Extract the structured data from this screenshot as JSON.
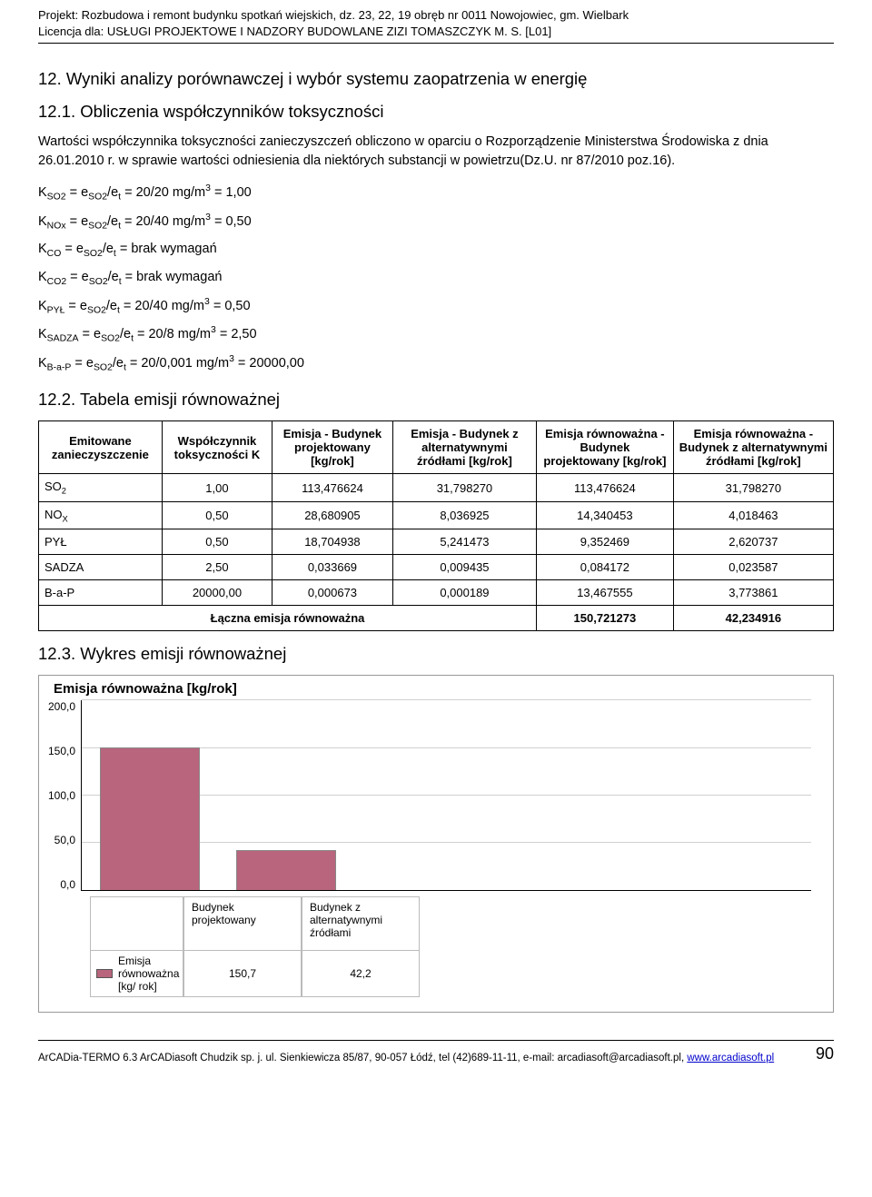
{
  "header": {
    "line1": "Projekt: Rozbudowa i remont budynku spotkań wiejskich, dz. 23, 22, 19 obręb nr 0011 Nowojowiec, gm. Wielbark",
    "line2": "Licencja dla: USŁUGI PROJEKTOWE I NADZORY BUDOWLANE ZIZI TOMASZCZYK M. S. [L01]"
  },
  "sections": {
    "h12": "12. Wyniki analizy porównawczej i wybór systemu zaopatrzenia w energię",
    "h121": "12.1. Obliczenia współczynników toksyczności",
    "para1": "Wartości współczynnika toksyczności zanieczyszczeń obliczono w oparciu o Rozporządzenie Ministerstwa Środowiska z dnia 26.01.2010 r. w sprawie wartości odniesienia dla niektórych substancji w powietrzu(Dz.U. nr 87/2010 poz.16).",
    "h122": "12.2. Tabela emisji równoważnej",
    "h123": "12.3. Wykres emisji równoważnej"
  },
  "formulas": [
    {
      "lhs": "K",
      "lsub": "SO2",
      "mid": " = e",
      "msub": "SO2",
      "mid2": "/e",
      "msub2": "t",
      "rhs": " = 20/20 mg/m",
      "sup": "3",
      "eq": " = 1,00"
    },
    {
      "lhs": "K",
      "lsub": "NOx",
      "mid": " = e",
      "msub": "SO2",
      "mid2": "/e",
      "msub2": "t",
      "rhs": " = 20/40 mg/m",
      "sup": "3",
      "eq": " = 0,50"
    },
    {
      "lhs": "K",
      "lsub": "CO",
      "mid": " = e",
      "msub": "SO2",
      "mid2": "/e",
      "msub2": "t",
      "rhs": " = brak wymagań",
      "sup": "",
      "eq": ""
    },
    {
      "lhs": "K",
      "lsub": "CO2",
      "mid": " = e",
      "msub": "SO2",
      "mid2": "/e",
      "msub2": "t",
      "rhs": " = brak wymagań",
      "sup": "",
      "eq": ""
    },
    {
      "lhs": "K",
      "lsub": "PYŁ",
      "mid": " = e",
      "msub": "SO2",
      "mid2": "/e",
      "msub2": "t",
      "rhs": " = 20/40 mg/m",
      "sup": "3",
      "eq": " = 0,50"
    },
    {
      "lhs": "K",
      "lsub": "SADZA",
      "mid": " = e",
      "msub": "SO2",
      "mid2": "/e",
      "msub2": "t",
      "rhs": " = 20/8 mg/m",
      "sup": "3",
      "eq": " = 2,50"
    },
    {
      "lhs": "K",
      "lsub": "B-a-P",
      "mid": " = e",
      "msub": "SO2",
      "mid2": "/e",
      "msub2": "t",
      "rhs": " = 20/0,001 mg/m",
      "sup": "3",
      "eq": " = 20000,00"
    }
  ],
  "table": {
    "columns": [
      "Emitowane zanieczyszczenie",
      "Współczynnik toksyczności K",
      "Emisja - Budynek projektowany [kg/rok]",
      "Emisja - Budynek z alternatywnymi źródłami [kg/rok]",
      "Emisja równoważna - Budynek projektowany [kg/rok]",
      "Emisja równoważna - Budynek z alternatywnymi źródłami [kg/rok]"
    ],
    "rows": [
      {
        "c0_html": "SO<sub>2</sub>",
        "c1": "1,00",
        "c2": "113,476624",
        "c3": "31,798270",
        "c4": "113,476624",
        "c5": "31,798270"
      },
      {
        "c0_html": "NO<sub>X</sub>",
        "c1": "0,50",
        "c2": "28,680905",
        "c3": "8,036925",
        "c4": "14,340453",
        "c5": "4,018463"
      },
      {
        "c0_html": "PYŁ",
        "c1": "0,50",
        "c2": "18,704938",
        "c3": "5,241473",
        "c4": "9,352469",
        "c5": "2,620737"
      },
      {
        "c0_html": "SADZA",
        "c1": "2,50",
        "c2": "0,033669",
        "c3": "0,009435",
        "c4": "0,084172",
        "c5": "0,023587"
      },
      {
        "c0_html": "B-a-P",
        "c1": "20000,00",
        "c2": "0,000673",
        "c3": "0,000189",
        "c4": "13,467555",
        "c5": "3,773861"
      }
    ],
    "sum_label": "Łączna emisja równoważna",
    "sum_c4": "150,721273",
    "sum_c5": "42,234916"
  },
  "chart": {
    "title": "Emisja równoważna [kg/rok]",
    "ylim": [
      0,
      200
    ],
    "ytick_step": 50,
    "yticks": [
      "200,0",
      "150,0",
      "100,0",
      "50,0",
      "0,0"
    ],
    "categories": [
      "Budynek projektowany",
      "Budynek z alternatywnymi źródłami"
    ],
    "series_name": "Emisja równoważna [kg/ rok]",
    "values": [
      150.7,
      42.2
    ],
    "display_values": [
      "150,7",
      "42,2"
    ],
    "bar_color": "#b8657d",
    "grid_color": "#d0d0d0",
    "background": "#ffffff"
  },
  "footer": {
    "text_prefix": "ArCADia-TERMO 6.3 ArCADiasoft Chudzik sp. j. ul. Sienkiewicza 85/87, 90-057 Łódź, tel (42)689-11-11, e-mail: arcadiasoft@arcadiasoft.pl, ",
    "link_text": "www.arcadiasoft.pl",
    "page": "90"
  }
}
